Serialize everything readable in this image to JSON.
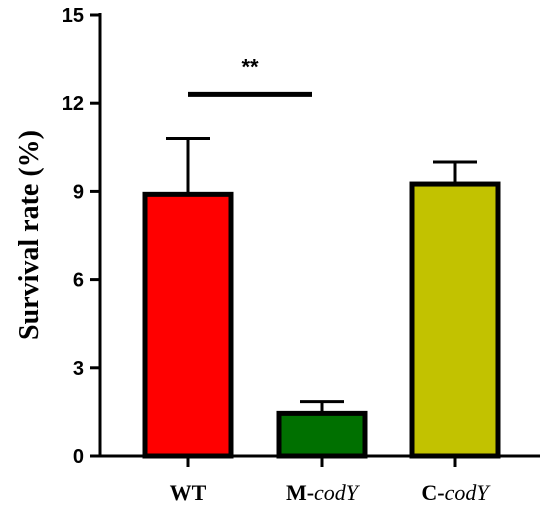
{
  "chart_data": {
    "type": "bar",
    "categories": [
      {
        "prefix": "WT",
        "italic": ""
      },
      {
        "prefix": "M-",
        "italic": "codY"
      },
      {
        "prefix": "C-",
        "italic": "codY"
      }
    ],
    "values": [
      8.9,
      1.45,
      9.25
    ],
    "errors": [
      1.9,
      0.4,
      0.75
    ],
    "colors": [
      "#ff0000",
      "#007000",
      "#c2c200"
    ],
    "ylabel": "Survival rate (%)",
    "ylim": [
      0,
      15
    ],
    "yticks": [
      "0",
      "3",
      "6",
      "9",
      "12",
      "15"
    ],
    "significance": {
      "label": "**",
      "from": 0,
      "to": 1,
      "y": 12.3
    },
    "grid": false,
    "legend": "none"
  }
}
